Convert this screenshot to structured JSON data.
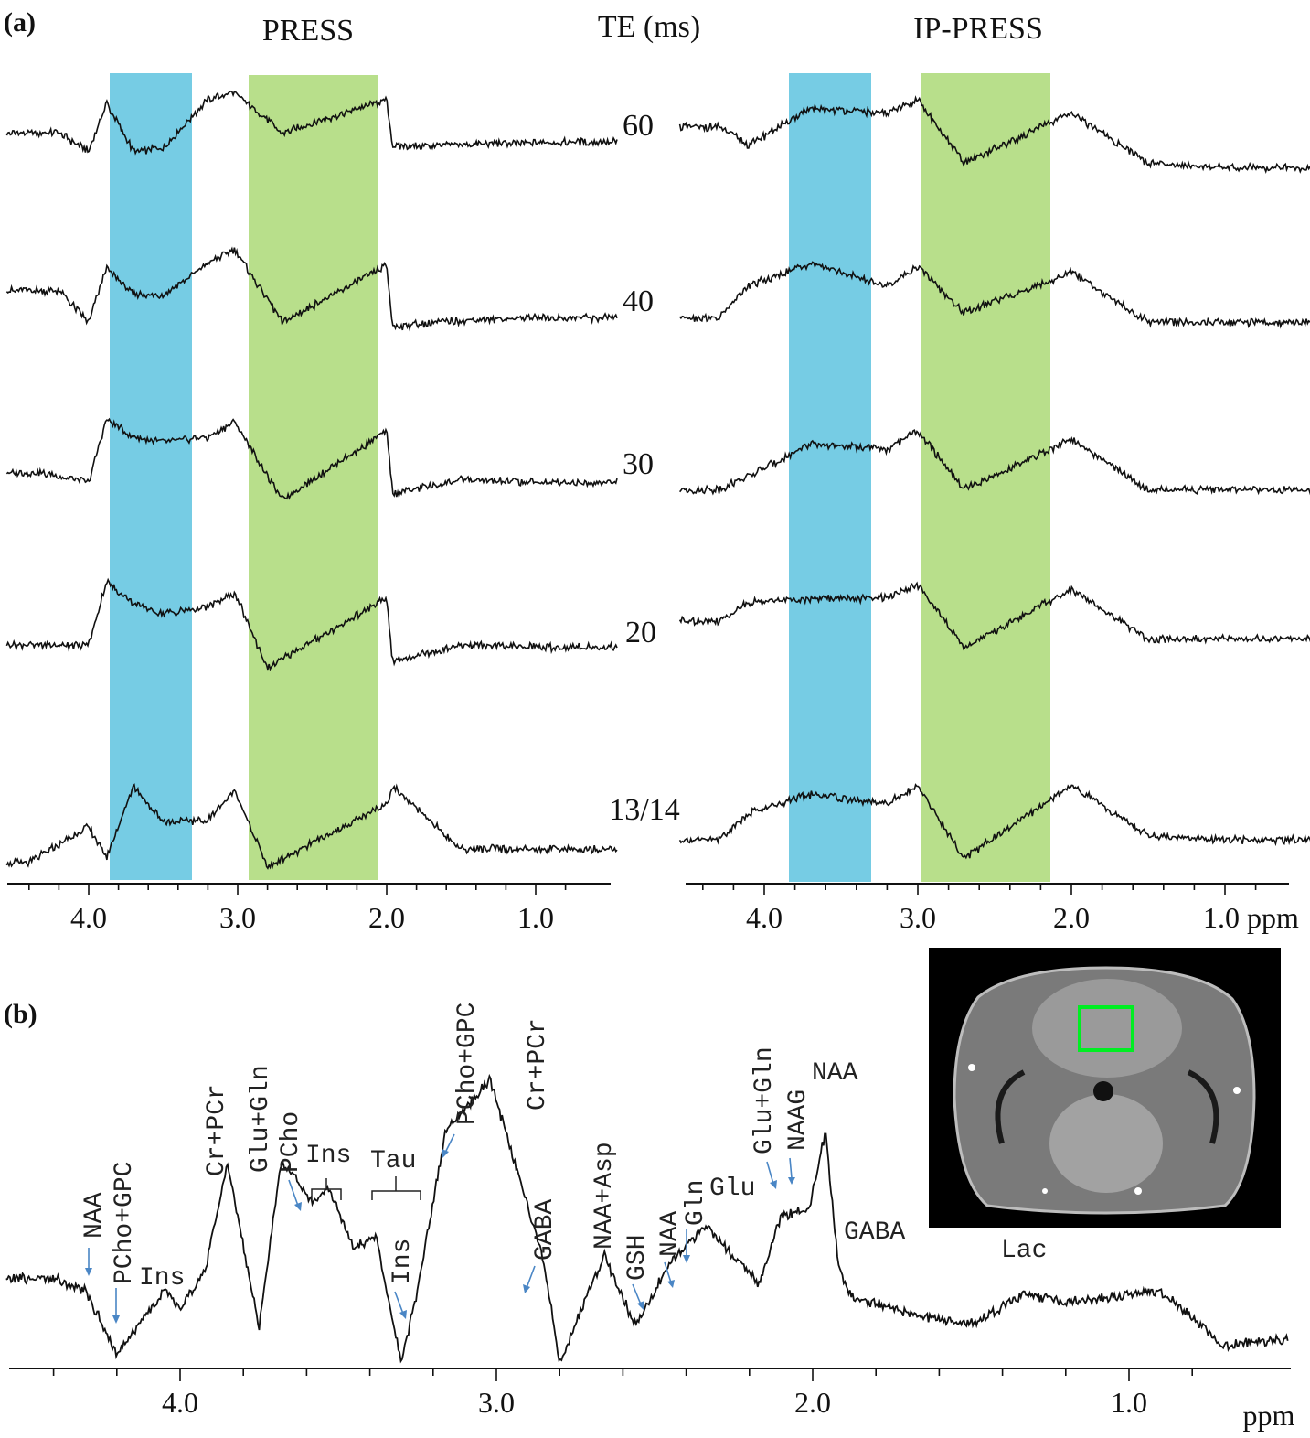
{
  "panel_labels": {
    "a": "(a)",
    "b": "(b)"
  },
  "colors": {
    "band_blue": "#5ec3df",
    "band_green": "#a6d76e",
    "trace": "#111111",
    "arrow": "#4a86c5",
    "roi_box": "#00ee22"
  },
  "chart_data": [
    {
      "type": "line",
      "title": "PRESS",
      "x_unit": "ppm",
      "x_axis_reversed": true,
      "xlim": [
        4.5,
        0.5
      ],
      "xticks": [
        "4.0",
        "3.0",
        "2.0",
        "1.0"
      ],
      "te_header": "TE (ms)",
      "series": [
        {
          "name": "60",
          "x": [
            4.2,
            4.0,
            3.88,
            3.7,
            3.5,
            3.2,
            3.02,
            2.7,
            2.0,
            1.96,
            1.5,
            1.0
          ],
          "y": [
            0.45,
            0.25,
            0.78,
            0.25,
            0.28,
            0.82,
            0.9,
            0.45,
            0.82,
            0.3,
            0.32,
            0.35
          ]
        },
        {
          "name": "40",
          "x": [
            4.2,
            4.0,
            3.88,
            3.7,
            3.5,
            3.2,
            3.02,
            2.7,
            2.0,
            1.96,
            1.5,
            1.0
          ],
          "y": [
            0.55,
            0.2,
            0.8,
            0.5,
            0.5,
            0.85,
            1.0,
            0.2,
            0.82,
            0.15,
            0.22,
            0.25
          ]
        },
        {
          "name": "30",
          "x": [
            4.3,
            4.0,
            3.88,
            3.7,
            3.5,
            3.2,
            3.02,
            2.7,
            2.0,
            1.96,
            1.5,
            1.0
          ],
          "y": [
            0.35,
            0.25,
            0.95,
            0.75,
            0.7,
            0.75,
            0.92,
            0.05,
            0.82,
            0.12,
            0.28,
            0.25
          ]
        },
        {
          "name": "20",
          "x": [
            4.3,
            4.0,
            3.88,
            3.7,
            3.5,
            3.2,
            3.02,
            2.8,
            2.0,
            1.96,
            1.5,
            1.0
          ],
          "y": [
            0.3,
            0.3,
            1.0,
            0.75,
            0.65,
            0.72,
            0.88,
            0.05,
            0.82,
            0.12,
            0.3,
            0.28
          ]
        },
        {
          "name": "13/14",
          "x": [
            4.4,
            4.0,
            3.88,
            3.7,
            3.5,
            3.2,
            3.02,
            2.8,
            2.0,
            1.96,
            1.5,
            1.0
          ],
          "y": [
            0.15,
            0.55,
            0.2,
            1.0,
            0.6,
            0.62,
            0.95,
            0.1,
            0.8,
            1.0,
            0.3,
            0.3
          ]
        }
      ],
      "highlight_bands": [
        {
          "from": 3.82,
          "to": 3.3,
          "color": "blue"
        },
        {
          "from": 2.92,
          "to": 2.02,
          "color": "green"
        }
      ]
    },
    {
      "type": "line",
      "title": "IP-PRESS",
      "x_unit": "ppm",
      "x_axis_reversed": true,
      "xlim": [
        4.5,
        0.5
      ],
      "xticks": [
        "4.0",
        "3.0",
        "2.0",
        "1.0 ppm"
      ],
      "series": [
        {
          "name": "60",
          "x": [
            4.3,
            4.1,
            3.7,
            3.2,
            3.0,
            2.7,
            2.0,
            1.5,
            1.0
          ],
          "y": [
            0.7,
            0.5,
            0.9,
            0.85,
            1.0,
            0.3,
            0.85,
            0.3,
            0.25
          ]
        },
        {
          "name": "40",
          "x": [
            4.3,
            4.1,
            3.7,
            3.2,
            3.0,
            2.7,
            2.0,
            1.5,
            1.0
          ],
          "y": [
            0.35,
            0.7,
            0.95,
            0.7,
            0.92,
            0.4,
            0.85,
            0.3,
            0.3
          ]
        },
        {
          "name": "30",
          "x": [
            4.3,
            4.1,
            3.7,
            3.2,
            3.0,
            2.7,
            2.0,
            1.5,
            1.0
          ],
          "y": [
            0.3,
            0.45,
            0.8,
            0.75,
            0.95,
            0.3,
            0.85,
            0.3,
            0.3
          ]
        },
        {
          "name": "20",
          "x": [
            4.3,
            4.1,
            3.7,
            3.2,
            3.0,
            2.7,
            2.0,
            1.5,
            1.0
          ],
          "y": [
            0.5,
            0.7,
            0.75,
            0.75,
            0.9,
            0.2,
            0.85,
            0.3,
            0.3
          ]
        },
        {
          "name": "13/14",
          "x": [
            4.3,
            4.1,
            3.7,
            3.2,
            3.0,
            2.7,
            2.0,
            1.5,
            1.0
          ],
          "y": [
            0.3,
            0.6,
            0.8,
            0.7,
            0.9,
            0.1,
            0.9,
            0.35,
            0.3
          ]
        }
      ],
      "highlight_bands": [
        {
          "from": 3.82,
          "to": 3.3,
          "color": "blue"
        },
        {
          "from": 2.92,
          "to": 2.02,
          "color": "green"
        }
      ]
    },
    {
      "type": "line",
      "x_unit": "ppm",
      "x_axis_reversed": true,
      "xlim": [
        4.6,
        0.5
      ],
      "xticks": [
        "4.0",
        "3.0",
        "2.0",
        "1.0"
      ],
      "xlabel": "ppm",
      "series": [
        {
          "x": [
            4.4,
            4.3,
            4.2,
            4.05,
            4.0,
            3.92,
            3.85,
            3.75,
            3.68,
            3.58,
            3.53,
            3.45,
            3.38,
            3.3,
            3.25,
            3.16,
            3.02,
            2.85,
            2.8,
            2.66,
            2.56,
            2.48,
            2.44,
            2.34,
            2.17,
            2.1,
            2.01,
            1.96,
            1.92,
            1.88,
            1.68,
            1.5,
            1.33,
            1.2,
            0.9,
            0.7,
            0.5
          ],
          "y": [
            0.28,
            0.24,
            0.03,
            0.24,
            0.18,
            0.31,
            0.66,
            0.12,
            0.67,
            0.53,
            0.58,
            0.38,
            0.42,
            0.0,
            0.24,
            0.77,
            0.94,
            0.34,
            0.0,
            0.36,
            0.12,
            0.28,
            0.34,
            0.46,
            0.26,
            0.49,
            0.51,
            0.77,
            0.33,
            0.22,
            0.16,
            0.13,
            0.23,
            0.2,
            0.24,
            0.06,
            0.08
          ]
        }
      ],
      "annotations": [
        "NAA",
        "PCho+GPC",
        "Ins",
        "Cr+PCr",
        "Glu+Gln",
        "PCho",
        "Ins",
        "Tau",
        "Ins",
        "PCho+GPC",
        "Cr+PCr",
        "GABA",
        "NAA+Asp",
        "GSH",
        "NAA",
        "Gln",
        "Glu",
        "Glu+Gln",
        "NAAG",
        "NAA",
        "GABA",
        "Lac"
      ]
    }
  ]
}
